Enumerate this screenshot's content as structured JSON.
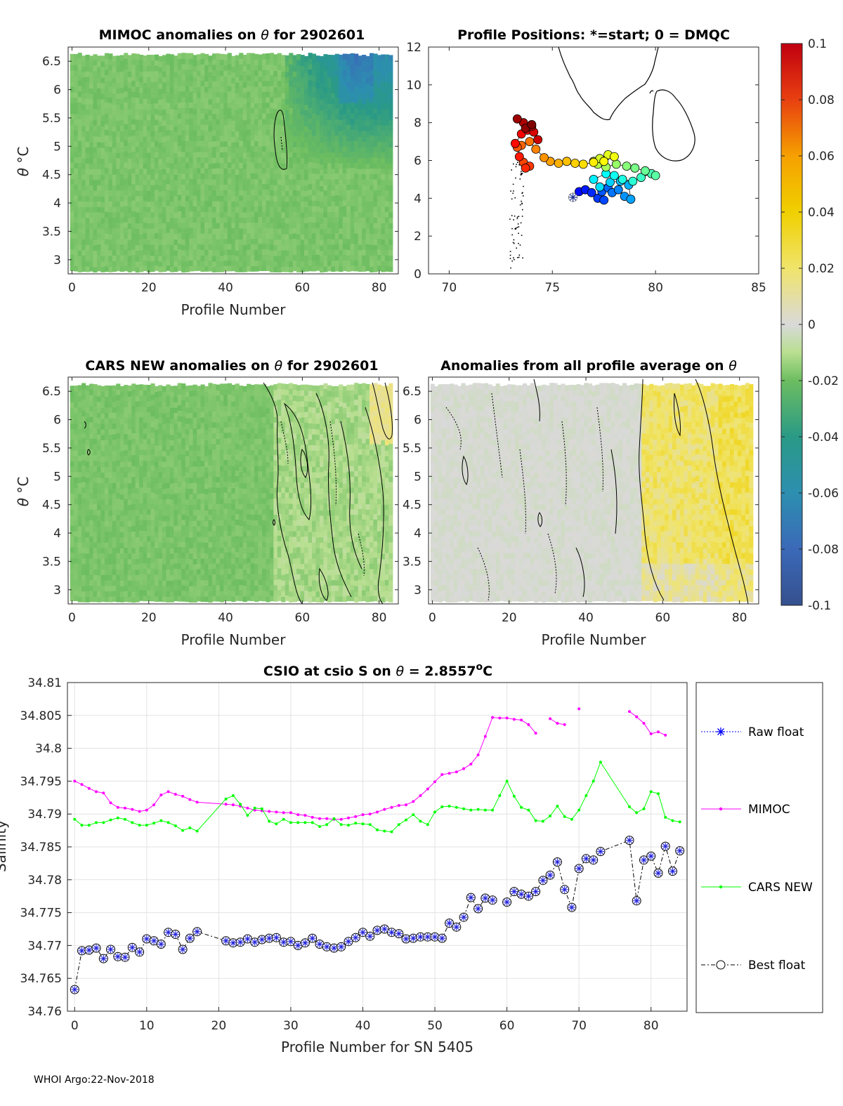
{
  "footer": "WHOI Argo:22-Nov-2018",
  "colorbar": {
    "ticks": [
      "0.1",
      "0.08",
      "0.06",
      "0.04",
      "0.02",
      "0",
      "-0.02",
      "-0.04",
      "-0.06",
      "-0.08",
      "-0.1"
    ],
    "min": -0.1,
    "max": 0.1
  },
  "panels": {
    "p1": {
      "title_pre": "MIMOC anomalies on ",
      "title_sym": "θ",
      "title_post": "  for 2902601",
      "xlabel": "Profile Number",
      "ylabel_sym": "θ",
      "ylabel_unit": "°C",
      "xticks": [
        "0",
        "20",
        "40",
        "60",
        "80"
      ],
      "yticks": [
        "6.5",
        "6",
        "5.5",
        "5",
        "4.5",
        "4",
        "3.5",
        "3"
      ]
    },
    "p2": {
      "title": "Profile Positions: *=start; 0 = DMQC",
      "xticks": [
        "70",
        "75",
        "80",
        "85"
      ],
      "yticks": [
        "12",
        "10",
        "8",
        "6",
        "4",
        "2",
        "0"
      ]
    },
    "p3": {
      "title_pre": "CARS NEW anomalies on ",
      "title_sym": "θ",
      "title_post": " for 2902601",
      "xlabel": "Profile Number",
      "ylabel_sym": "θ",
      "ylabel_unit": "°C",
      "xticks": [
        "0",
        "20",
        "40",
        "60",
        "80"
      ],
      "yticks": [
        "6.5",
        "6",
        "5.5",
        "5",
        "4.5",
        "4",
        "3.5",
        "3"
      ]
    },
    "p4": {
      "title_pre": "Anomalies from all profile average on ",
      "title_sym": "θ",
      "xlabel": "Profile Number",
      "xticks": [
        "0",
        "20",
        "40",
        "60",
        "80"
      ],
      "yticks": [
        "6.5",
        "6",
        "5.5",
        "5",
        "4.5",
        "4",
        "3.5",
        "3"
      ]
    },
    "p5": {
      "title_pre": "CSIO at csio S on ",
      "title_sym": "θ",
      "title_mid": " = 2.8557",
      "title_sup": "o",
      "title_end": "C",
      "xlabel": "Profile Number for SN 5405",
      "ylabel": "Salinity",
      "xticks": [
        "0",
        "10",
        "20",
        "30",
        "40",
        "50",
        "60",
        "70",
        "80"
      ],
      "yticks": [
        "34.81",
        "34.805",
        "34.8",
        "34.795",
        "34.79",
        "34.785",
        "34.78",
        "34.775",
        "34.77",
        "34.765",
        "34.76"
      ],
      "legend": [
        "Raw float",
        "MIMOC",
        "CARS NEW",
        "Best float"
      ]
    }
  },
  "chart_data": [
    {
      "type": "heatmap",
      "title": "MIMOC anomalies on θ for 2902601",
      "xlabel": "Profile Number",
      "ylabel": "θ °C",
      "xlim": [
        -1,
        85
      ],
      "ylim": [
        2.75,
        6.75
      ],
      "color_range": [
        -0.1,
        0.1
      ],
      "description_values": {
        "profiles_0_55": -0.018,
        "profiles_56_84_deep": -0.02,
        "profiles_56_84_upper_min": -0.055
      }
    },
    {
      "type": "scatter",
      "title": "Profile Positions: *=start; 0 = DMQC",
      "xlim": [
        69,
        85
      ],
      "ylim": [
        0,
        12
      ],
      "lon": [
        76.0,
        76.3,
        76.6,
        76.9,
        77.2,
        77.5,
        77.4,
        77.7,
        77.9,
        78.2,
        78.5,
        78.8,
        78.7,
        78.3,
        77.8,
        77.3,
        77.0,
        77.6,
        78.0,
        78.4,
        78.9,
        79.3,
        79.8,
        80.0,
        79.5,
        79.0,
        78.6,
        78.1,
        77.6,
        77.2,
        77.0,
        77.3,
        77.7,
        78.0,
        77.5,
        77.0,
        76.5,
        76.1,
        75.7,
        75.3,
        74.9,
        74.6,
        74.2,
        73.9,
        73.5,
        73.3,
        73.6,
        73.9,
        73.7,
        73.4,
        73.2,
        73.5,
        73.8,
        74.1,
        74.3,
        74.0,
        73.6,
        73.3,
        73.7,
        74.0
      ],
      "lat": [
        4.05,
        4.35,
        4.45,
        4.3,
        4.0,
        3.9,
        4.35,
        4.55,
        4.3,
        4.45,
        4.1,
        3.95,
        4.7,
        4.9,
        4.85,
        4.6,
        5.0,
        5.3,
        5.2,
        5.0,
        4.9,
        5.1,
        5.3,
        5.2,
        5.45,
        5.6,
        5.7,
        5.8,
        5.65,
        5.8,
        5.95,
        6.1,
        6.3,
        6.2,
        5.95,
        5.9,
        5.8,
        5.85,
        5.95,
        5.85,
        5.95,
        6.15,
        6.6,
        7.0,
        6.8,
        6.7,
        5.9,
        5.7,
        5.6,
        6.2,
        6.9,
        7.4,
        7.6,
        7.5,
        7.1,
        7.8,
        8.0,
        8.2,
        7.7,
        7.9
      ],
      "start": [
        76.0,
        4.05
      ]
    },
    {
      "type": "heatmap",
      "title": "CARS NEW anomalies on θ for 2902601",
      "xlim": [
        -1,
        85
      ],
      "ylim": [
        2.75,
        6.75
      ],
      "color_range": [
        -0.1,
        0.1
      ],
      "description_values": {
        "profiles_0_52": -0.018,
        "profiles_53_84": -0.008
      }
    },
    {
      "type": "heatmap",
      "title": "Anomalies from all profile average on θ",
      "xlim": [
        -1,
        85
      ],
      "ylim": [
        2.75,
        6.75
      ],
      "color_range": [
        -0.1,
        0.1
      ],
      "description_values": {
        "profiles_0_54": -0.002,
        "profiles_55_84": 0.025
      }
    },
    {
      "type": "line",
      "title": "CSIO at csio S on θ = 2.8557°C",
      "xlabel": "Profile Number for SN 5405",
      "ylabel": "Salinity",
      "xlim": [
        -1,
        85
      ],
      "ylim": [
        34.76,
        34.81
      ],
      "series": [
        {
          "name": "MIMOC",
          "color": "#ff00ff",
          "x": [
            0,
            1,
            2,
            3,
            4,
            5,
            6,
            7,
            8,
            9,
            10,
            11,
            12,
            13,
            14,
            15,
            16,
            17,
            21,
            22,
            23,
            24,
            25,
            26,
            27,
            28,
            29,
            30,
            31,
            32,
            33,
            34,
            35,
            36,
            37,
            38,
            39,
            40,
            41,
            42,
            43,
            44,
            45,
            46,
            47,
            48,
            49,
            50,
            51,
            52,
            53,
            54,
            55,
            56,
            57,
            58,
            59,
            60,
            61,
            62,
            63,
            64,
            null,
            66,
            67,
            68,
            null,
            70,
            null,
            77,
            78,
            79,
            80,
            81,
            82
          ],
          "y": [
            34.795,
            34.7945,
            34.7939,
            34.7934,
            34.7932,
            34.7917,
            34.791,
            34.7909,
            34.7907,
            34.7904,
            34.7906,
            34.7914,
            34.7929,
            34.7934,
            34.793,
            34.7927,
            34.7922,
            34.7918,
            34.7915,
            34.7914,
            34.7912,
            34.7909,
            34.7906,
            34.7905,
            34.7904,
            34.7903,
            34.7902,
            34.7902,
            34.7899,
            34.7898,
            34.7895,
            34.7893,
            34.7893,
            34.7892,
            34.7892,
            34.7894,
            34.7896,
            34.7899,
            34.79,
            34.7903,
            34.7907,
            34.791,
            34.7913,
            34.7914,
            34.7919,
            34.7928,
            34.7938,
            34.7949,
            34.796,
            34.7962,
            34.7964,
            34.7969,
            34.7976,
            34.799,
            34.8018,
            34.8047,
            34.8046,
            34.8046,
            34.8044,
            34.8043,
            34.8036,
            34.8023,
            null,
            34.8045,
            34.8038,
            34.8036,
            null,
            34.806,
            null,
            34.8056,
            34.8048,
            34.8038,
            34.8022,
            34.8025,
            34.802
          ]
        },
        {
          "name": "CARS NEW",
          "color": "#00ff00",
          "x": [
            0,
            1,
            2,
            3,
            4,
            5,
            6,
            7,
            8,
            9,
            10,
            11,
            12,
            13,
            14,
            15,
            16,
            17,
            21,
            22,
            23,
            24,
            25,
            26,
            27,
            28,
            29,
            30,
            31,
            32,
            33,
            34,
            35,
            36,
            37,
            38,
            39,
            40,
            41,
            42,
            43,
            44,
            45,
            46,
            47,
            48,
            49,
            50,
            51,
            52,
            53,
            54,
            55,
            56,
            57,
            58,
            59,
            60,
            61,
            62,
            63,
            64,
            65,
            66,
            67,
            68,
            69,
            70,
            71,
            72,
            73,
            77,
            78,
            79,
            80,
            81,
            82,
            83,
            84
          ],
          "y": [
            34.7892,
            34.7883,
            34.7883,
            34.7887,
            34.7887,
            34.7891,
            34.7894,
            34.7892,
            34.7887,
            34.7883,
            34.7883,
            34.7886,
            34.789,
            34.7887,
            34.7882,
            34.7875,
            34.7879,
            34.7874,
            34.7923,
            34.7928,
            34.7915,
            34.7898,
            34.7909,
            34.7908,
            34.7889,
            34.7885,
            34.7892,
            34.7887,
            34.7887,
            34.7887,
            34.7887,
            34.7881,
            34.7884,
            34.7893,
            34.7884,
            34.7883,
            34.7886,
            34.7885,
            34.7884,
            34.7876,
            34.7874,
            34.7873,
            34.7884,
            34.7891,
            34.7899,
            34.7889,
            34.7884,
            34.7903,
            34.7911,
            34.7912,
            34.791,
            34.7908,
            34.7906,
            34.7907,
            34.7906,
            34.7906,
            34.7928,
            34.795,
            34.7927,
            34.791,
            34.7906,
            34.789,
            34.7889,
            34.7897,
            34.7912,
            34.7896,
            34.7892,
            34.7906,
            34.7928,
            34.795,
            34.7979,
            34.7911,
            34.7902,
            34.7908,
            34.7934,
            34.7931,
            34.7895,
            34.789,
            34.7888
          ]
        },
        {
          "name": "Best float",
          "color": "#000000",
          "x": [
            0,
            1,
            2,
            3,
            4,
            5,
            6,
            7,
            8,
            9,
            10,
            11,
            12,
            13,
            14,
            15,
            16,
            17,
            21,
            22,
            23,
            24,
            25,
            26,
            27,
            28,
            29,
            30,
            31,
            32,
            33,
            34,
            35,
            36,
            37,
            38,
            39,
            40,
            41,
            42,
            43,
            44,
            45,
            46,
            47,
            48,
            49,
            50,
            51,
            52,
            53,
            54,
            55,
            56,
            57,
            58,
            59,
            60,
            61,
            62,
            63,
            64,
            65,
            66,
            67,
            68,
            69,
            70,
            71,
            72,
            73,
            77,
            78,
            79,
            80,
            81,
            82,
            83,
            84
          ],
          "y": [
            34.7633,
            34.7692,
            34.7693,
            34.7696,
            34.768,
            34.7694,
            34.7683,
            34.7682,
            34.7697,
            34.769,
            34.771,
            34.7707,
            34.7702,
            34.772,
            34.7717,
            34.7694,
            34.7711,
            34.7721,
            34.7707,
            34.7704,
            34.7705,
            34.771,
            34.7705,
            34.7709,
            34.7711,
            34.7712,
            34.7705,
            34.7706,
            34.77,
            34.7704,
            34.7711,
            34.7702,
            34.7698,
            34.7696,
            34.7698,
            34.7706,
            34.7712,
            34.772,
            34.7714,
            34.7723,
            34.7725,
            34.772,
            34.7718,
            34.771,
            34.7711,
            34.7713,
            34.7713,
            34.7713,
            34.7711,
            34.7734,
            34.7728,
            34.7743,
            34.7773,
            34.7756,
            34.7772,
            34.7769,
            null,
            34.7766,
            34.7782,
            34.7778,
            34.7775,
            34.7782,
            34.7799,
            34.7807,
            34.7827,
            34.7785,
            34.7758,
            34.7817,
            34.7832,
            34.783,
            34.7843,
            34.786,
            34.7768,
            34.783,
            34.7836,
            34.781,
            34.7851,
            34.7813,
            34.7844
          ]
        }
      ]
    }
  ]
}
